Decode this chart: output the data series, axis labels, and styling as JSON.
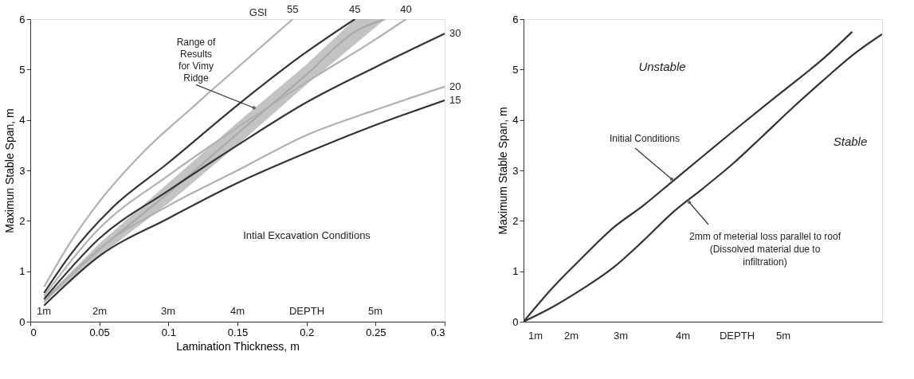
{
  "chart_data": [
    {
      "type": "line",
      "xlabel": "Lamination Thickness, m",
      "ylabel": "Maximun Stable Span, m",
      "xlim": [
        0,
        0.3
      ],
      "ylim": [
        0,
        6
      ],
      "xticks": [
        0,
        0.05,
        0.1,
        0.15,
        0.2,
        0.25,
        0.3
      ],
      "yticks": [
        0,
        1,
        2,
        3,
        4,
        5,
        6
      ],
      "grid": false,
      "legend": false,
      "line_style": "solid",
      "marker": "none",
      "series": [
        {
          "color": "#a9a9a9",
          "x": [
            0.01,
            0.05,
            0.1,
            0.15,
            0.2,
            0.235,
            0.257
          ],
          "lower": [
            0.4,
            1.3,
            2.35,
            3.5,
            4.7,
            5.5,
            6.0
          ],
          "upper": [
            0.45,
            1.55,
            2.75,
            3.95,
            5.1,
            6.0,
            6.0
          ],
          "values": [
            0.43,
            1.43,
            2.55,
            3.73,
            4.9,
            5.75,
            6.0
          ]
        },
        {
          "name": "55",
          "color": "#b0b0b0",
          "x": [
            0.01,
            0.028,
            0.05,
            0.081,
            0.117,
            0.148,
            0.19
          ],
          "values": [
            0.69,
            1.53,
            2.38,
            3.34,
            4.24,
            4.99,
            6.0
          ]
        },
        {
          "name": "45",
          "color": "#333333",
          "x": [
            0.01,
            0.028,
            0.059,
            0.099,
            0.153,
            0.197,
            0.235
          ],
          "values": [
            0.57,
            1.29,
            2.25,
            3.13,
            4.36,
            5.29,
            6.0
          ]
        },
        {
          "name": "40",
          "color": "#b0b0b0",
          "x": [
            0.01,
            0.05,
            0.1,
            0.15,
            0.2,
            0.25,
            0.272
          ],
          "values": [
            0.51,
            1.85,
            2.9,
            3.85,
            4.75,
            5.6,
            6.0
          ]
        },
        {
          "name": "30",
          "color": "#333333",
          "x": [
            0.01,
            0.05,
            0.1,
            0.15,
            0.2,
            0.25,
            0.3
          ],
          "values": [
            0.45,
            1.65,
            2.6,
            3.5,
            4.35,
            5.05,
            5.71
          ]
        },
        {
          "name": "20",
          "color": "#b0b0b0",
          "x": [
            0.01,
            0.05,
            0.1,
            0.15,
            0.2,
            0.25,
            0.3
          ],
          "values": [
            0.38,
            1.45,
            2.3,
            3.0,
            3.7,
            4.2,
            4.66
          ]
        },
        {
          "name": "15",
          "color": "#333333",
          "x": [
            0.01,
            0.05,
            0.1,
            0.15,
            0.2,
            0.25,
            0.3
          ],
          "values": [
            0.32,
            1.3,
            2.05,
            2.75,
            3.35,
            3.9,
            4.39
          ]
        }
      ],
      "annotations": [
        "GSI",
        {
          "text": "Range of Results for Vimy Ridge",
          "x": 0.162,
          "y": 4.24
        },
        "Intial Excavation Conditions",
        "1m",
        "2m",
        "3m",
        "4m",
        "DEPTH",
        "5m"
      ]
    },
    {
      "type": "line",
      "ylabel": "Maximum Stable Span, m",
      "tick_labels": "y",
      "categories": [
        null,
        null,
        null,
        null,
        null,
        null,
        null,
        null,
        null,
        null,
        null,
        null,
        null
      ],
      "ylim": [
        0,
        6
      ],
      "yticks": [
        0,
        1,
        2,
        3,
        4,
        5,
        6
      ],
      "grid": false,
      "legend": false,
      "line_style": "solid",
      "marker": "none",
      "series": [
        {
          "color": "#333333",
          "values": [
            0,
            0.69,
            1.29,
            1.86,
            2.3,
            2.79,
            3.28,
            3.77,
            4.25,
            4.72,
            5.2,
            5.75,
            null
          ]
        },
        {
          "color": "#333333",
          "values": [
            0,
            0.3,
            0.66,
            1.07,
            1.6,
            2.17,
            2.64,
            3.13,
            3.68,
            4.24,
            4.77,
            5.28,
            5.7
          ]
        }
      ],
      "annotations": [
        "Unstable",
        "Stable",
        "Initial Conditions",
        "2mm of meterial loss parallel to roof (Dissolved material due to infiltration)",
        "1m",
        "2m",
        "3m",
        "4m",
        "DEPTH",
        "5m"
      ]
    }
  ]
}
